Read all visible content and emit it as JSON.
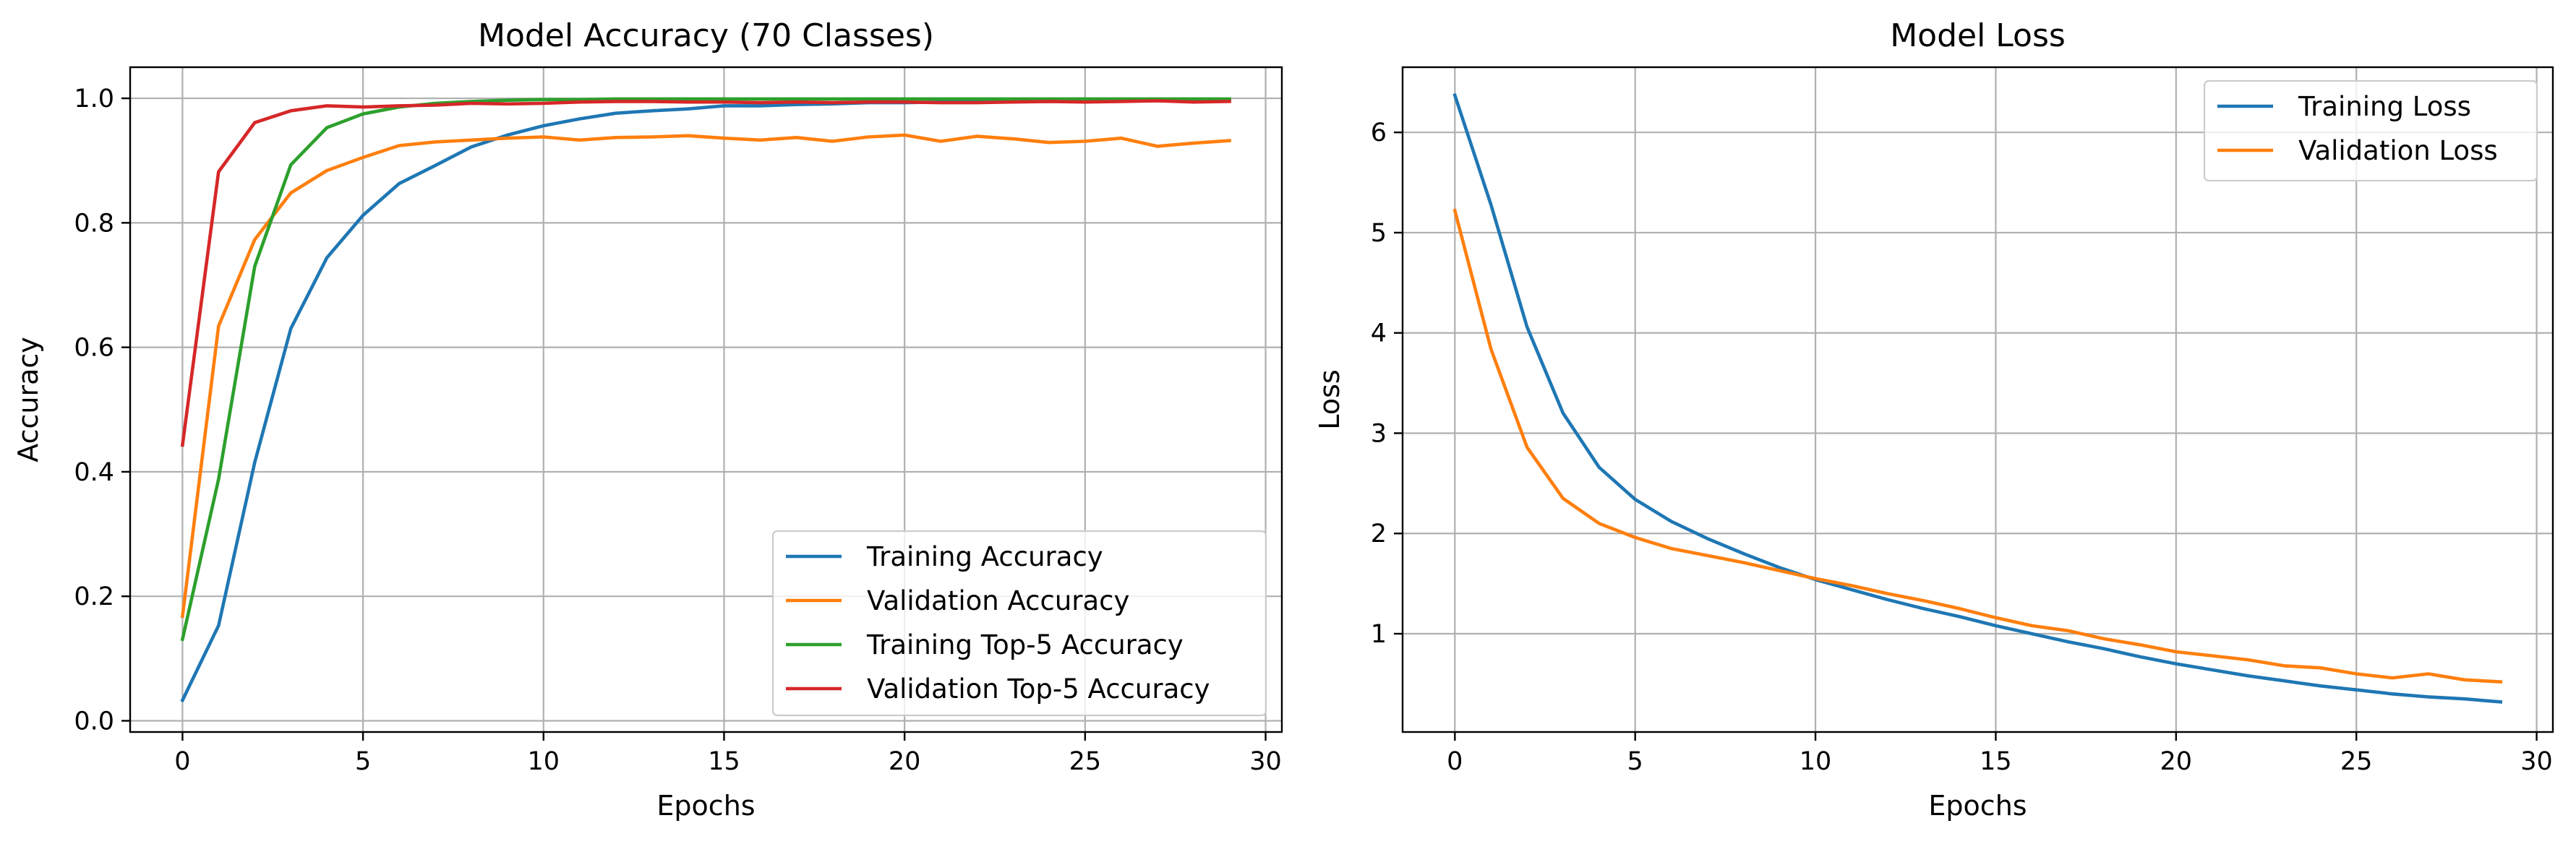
{
  "chart_data": [
    {
      "type": "line",
      "title": "Model Accuracy (70 Classes)",
      "xlabel": "Epochs",
      "ylabel": "Accuracy",
      "xlim": [
        -1.45,
        30.45
      ],
      "ylim": [
        -0.018,
        1.05
      ],
      "xticks": [
        0,
        5,
        10,
        15,
        20,
        25,
        30
      ],
      "xtick_labels": [
        "0",
        "5",
        "10",
        "15",
        "20",
        "25",
        "30"
      ],
      "yticks": [
        0.0,
        0.2,
        0.4,
        0.6,
        0.8,
        1.0
      ],
      "ytick_labels": [
        "0.0",
        "0.2",
        "0.4",
        "0.6",
        "0.8",
        "1.0"
      ],
      "grid": true,
      "legend_position": "lower-right",
      "x": [
        0,
        1,
        2,
        3,
        4,
        5,
        6,
        7,
        8,
        9,
        10,
        11,
        12,
        13,
        14,
        15,
        16,
        17,
        18,
        19,
        20,
        21,
        22,
        23,
        24,
        25,
        26,
        27,
        28,
        29
      ],
      "series": [
        {
          "name": "Training Accuracy",
          "color": "#1f77b4",
          "values": [
            0.033,
            0.153,
            0.415,
            0.63,
            0.744,
            0.812,
            0.863,
            0.892,
            0.922,
            0.941,
            0.956,
            0.967,
            0.976,
            0.98,
            0.983,
            0.988,
            0.988,
            0.99,
            0.991,
            0.993,
            0.993,
            0.994,
            0.994,
            0.995,
            0.995,
            0.996,
            0.996,
            0.996,
            0.997,
            0.997
          ]
        },
        {
          "name": "Validation Accuracy",
          "color": "#ff7f0e",
          "values": [
            0.168,
            0.634,
            0.773,
            0.848,
            0.884,
            0.905,
            0.924,
            0.93,
            0.933,
            0.936,
            0.938,
            0.933,
            0.937,
            0.938,
            0.94,
            0.936,
            0.933,
            0.937,
            0.931,
            0.938,
            0.941,
            0.931,
            0.939,
            0.935,
            0.929,
            0.931,
            0.936,
            0.923,
            0.928,
            0.932
          ]
        },
        {
          "name": "Training Top-5 Accuracy",
          "color": "#2ca02c",
          "values": [
            0.131,
            0.388,
            0.73,
            0.893,
            0.953,
            0.975,
            0.986,
            0.992,
            0.995,
            0.997,
            0.998,
            0.998,
            0.999,
            0.999,
            0.999,
            0.999,
            0.999,
            0.999,
            0.999,
            0.999,
            0.999,
            0.999,
            0.999,
            0.999,
            0.999,
            0.999,
            0.999,
            0.999,
            0.999,
            0.999
          ]
        },
        {
          "name": "Validation Top-5 Accuracy",
          "color": "#d62728",
          "values": [
            0.443,
            0.882,
            0.961,
            0.98,
            0.988,
            0.986,
            0.988,
            0.989,
            0.992,
            0.991,
            0.992,
            0.994,
            0.995,
            0.995,
            0.994,
            0.994,
            0.993,
            0.994,
            0.993,
            0.994,
            0.994,
            0.993,
            0.993,
            0.994,
            0.995,
            0.994,
            0.995,
            0.996,
            0.994,
            0.995
          ]
        }
      ]
    },
    {
      "type": "line",
      "title": "Model Loss",
      "xlabel": "Epochs",
      "ylabel": "Loss",
      "xlim": [
        -1.45,
        30.45
      ],
      "ylim": [
        0.02,
        6.65
      ],
      "xticks": [
        0,
        5,
        10,
        15,
        20,
        25,
        30
      ],
      "xtick_labels": [
        "0",
        "5",
        "10",
        "15",
        "20",
        "25",
        "30"
      ],
      "yticks": [
        1,
        2,
        3,
        4,
        5,
        6
      ],
      "ytick_labels": [
        "1",
        "2",
        "3",
        "4",
        "5",
        "6"
      ],
      "grid": true,
      "legend_position": "upper-right",
      "x": [
        0,
        1,
        2,
        3,
        4,
        5,
        6,
        7,
        8,
        9,
        10,
        11,
        12,
        13,
        14,
        15,
        16,
        17,
        18,
        19,
        20,
        21,
        22,
        23,
        24,
        25,
        26,
        27,
        28,
        29
      ],
      "series": [
        {
          "name": "Training Loss",
          "color": "#1f77b4",
          "values": [
            6.37,
            5.28,
            4.06,
            3.2,
            2.66,
            2.34,
            2.12,
            1.95,
            1.8,
            1.66,
            1.54,
            1.44,
            1.34,
            1.25,
            1.17,
            1.08,
            1.0,
            0.92,
            0.85,
            0.77,
            0.7,
            0.64,
            0.58,
            0.53,
            0.48,
            0.44,
            0.4,
            0.37,
            0.35,
            0.32
          ]
        },
        {
          "name": "Validation Loss",
          "color": "#ff7f0e",
          "values": [
            5.22,
            3.84,
            2.86,
            2.35,
            2.1,
            1.96,
            1.85,
            1.78,
            1.71,
            1.63,
            1.55,
            1.48,
            1.4,
            1.33,
            1.25,
            1.16,
            1.08,
            1.03,
            0.95,
            0.89,
            0.82,
            0.78,
            0.74,
            0.68,
            0.66,
            0.6,
            0.56,
            0.6,
            0.54,
            0.52
          ]
        }
      ]
    }
  ]
}
